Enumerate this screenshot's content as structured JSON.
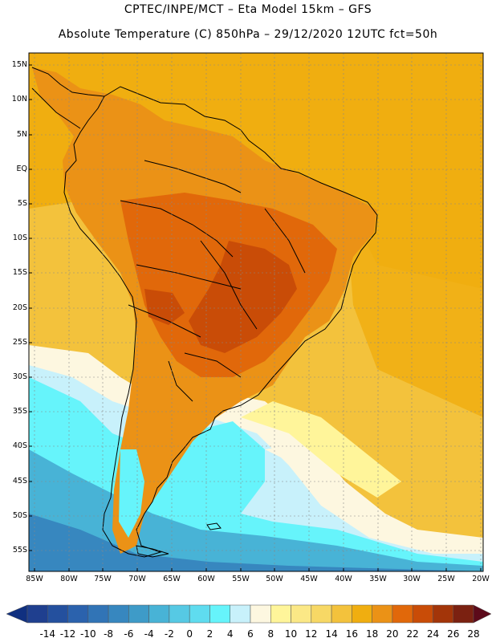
{
  "title_line1": "CPTEC/INPE/MCT –  Eta Model 15km – GFS",
  "title_line2": "Absolute Temperature (C) 850hPa – 29/12/2020 12UTC fct=50h",
  "lat_labels": [
    "15N",
    "10N",
    "5N",
    "EQ",
    "5S",
    "10S",
    "15S",
    "20S",
    "25S",
    "30S",
    "35S",
    "40S",
    "45S",
    "50S",
    "55S"
  ],
  "lon_labels": [
    "85W",
    "80W",
    "75W",
    "70W",
    "65W",
    "60W",
    "55W",
    "50W",
    "45W",
    "40W",
    "35W",
    "30W",
    "25W",
    "20W"
  ],
  "colorbar": {
    "labels": [
      "-14",
      "-12",
      "-10",
      "-8",
      "-6",
      "-4",
      "-2",
      "0",
      "2",
      "4",
      "6",
      "8",
      "10",
      "12",
      "14",
      "16",
      "18",
      "20",
      "22",
      "24",
      "26",
      "28"
    ],
    "colors": [
      "#1f3f8f",
      "#24509e",
      "#2b62ad",
      "#3174b6",
      "#3787bf",
      "#3e9bc8",
      "#48b3d6",
      "#56c9e4",
      "#5fdcef",
      "#66f4fb",
      "#c8f1fb",
      "#fdf7e0",
      "#fff59a",
      "#fbe886",
      "#f7d865",
      "#f3c23c",
      "#f0ae10",
      "#eb9216",
      "#e1680a",
      "#c94c07",
      "#a33509",
      "#7b2111"
    ],
    "min_color": "#103080",
    "max_color": "#5c0a1a"
  },
  "map_colors": {
    "ocean_warm": "#f2b91a",
    "ocean_mid": "#f3c23c",
    "land_warm": "#eb9216",
    "land_hot": "#e1680a",
    "land_hotter": "#c94c07",
    "cool_yellow": "#fff59a",
    "cream": "#fdf7e0",
    "pale_cyan": "#c8f1fb",
    "cyan": "#66f4fb",
    "light_blue": "#48b3d6",
    "mid_blue": "#3787bf"
  }
}
